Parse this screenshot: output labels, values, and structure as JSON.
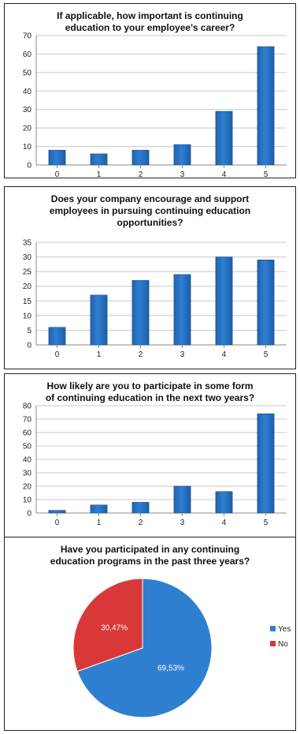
{
  "chart_data": [
    {
      "type": "bar",
      "title": "If applicable, how important is continuing\neducation to your employee's career?",
      "categories": [
        "0",
        "1",
        "2",
        "3",
        "4",
        "5"
      ],
      "values": [
        8,
        6,
        8,
        11,
        29,
        64
      ],
      "ylim": [
        0,
        70
      ],
      "yticks": [
        0,
        10,
        20,
        30,
        40,
        50,
        60,
        70
      ],
      "grid": true,
      "bar_color": "#2f7fd0"
    },
    {
      "type": "bar",
      "title": "Does your company encourage and support\nemployees in pursuing continuing education\nopportunities?",
      "categories": [
        "0",
        "1",
        "2",
        "3",
        "4",
        "5"
      ],
      "values": [
        6,
        17,
        22,
        24,
        30,
        29
      ],
      "ylim": [
        0,
        35
      ],
      "yticks": [
        0,
        5,
        10,
        15,
        20,
        25,
        30,
        35
      ],
      "grid": true,
      "bar_color": "#2f7fd0"
    },
    {
      "type": "bar",
      "title": "How likely are you to participate in some form\nof continuing education in the next two years?",
      "categories": [
        "0",
        "1",
        "2",
        "3",
        "4",
        "5"
      ],
      "values": [
        2,
        6,
        8,
        20,
        16,
        74
      ],
      "ylim": [
        0,
        80
      ],
      "yticks": [
        0,
        10,
        20,
        30,
        40,
        50,
        60,
        70,
        80
      ],
      "grid": true,
      "bar_color": "#2f7fd0"
    },
    {
      "type": "pie",
      "title": "Have you participated in any continuing\neducation programs in the past three years?",
      "slices": [
        {
          "label": "Yes",
          "value": 69.53,
          "text": "69,53%",
          "color": "#2f7fd0"
        },
        {
          "label": "No",
          "value": 30.47,
          "text": "30,47%",
          "color": "#d93838"
        }
      ],
      "legend": "right"
    }
  ]
}
